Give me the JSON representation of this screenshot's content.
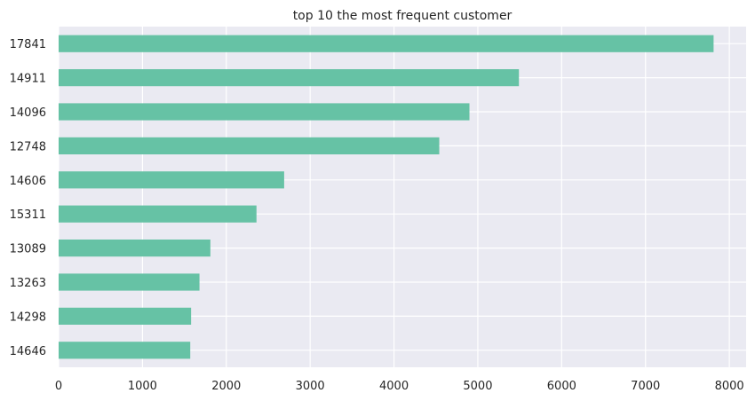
{
  "chart_data": {
    "type": "bar",
    "orientation": "horizontal",
    "title": "top 10 the most frequent customer",
    "xlabel": "",
    "ylabel": "",
    "categories": [
      "17841",
      "14911",
      "14096",
      "12748",
      "14606",
      "15311",
      "13089",
      "13263",
      "14298",
      "14646"
    ],
    "values": [
      7812,
      5490,
      4900,
      4540,
      2690,
      2360,
      1810,
      1680,
      1580,
      1570
    ],
    "xlim": [
      0,
      8200
    ],
    "xticks": [
      "0",
      "1000",
      "2000",
      "3000",
      "4000",
      "5000",
      "6000",
      "7000",
      "8000"
    ],
    "grid": true,
    "legend": "none",
    "colors": {
      "bar": "#66c2a5",
      "background": "#eaeaf2",
      "grid": "#ffffff",
      "text": "#262626"
    }
  }
}
